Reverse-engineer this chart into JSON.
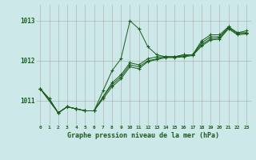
{
  "title": "Graphe pression niveau de la mer (hPa)",
  "background_color": "#cce8e8",
  "grid_color": "#aaaaaa",
  "line_color": "#1a5c1a",
  "xlim": [
    -0.5,
    23.5
  ],
  "ylim": [
    1010.4,
    1013.4
  ],
  "yticks": [
    1011,
    1012,
    1013
  ],
  "xticks": [
    0,
    1,
    2,
    3,
    4,
    5,
    6,
    7,
    8,
    9,
    10,
    11,
    12,
    13,
    14,
    15,
    16,
    17,
    18,
    19,
    20,
    21,
    22,
    23
  ],
  "series": [
    {
      "x": [
        0,
        1,
        2,
        3,
        4,
        5,
        6,
        7,
        8,
        9,
        10,
        11,
        12,
        13,
        14,
        15,
        16,
        17,
        18,
        19,
        20,
        21,
        22,
        23
      ],
      "y": [
        1011.3,
        1011.05,
        1010.7,
        1010.85,
        1010.8,
        1010.75,
        1010.75,
        1011.25,
        1011.75,
        1012.05,
        1013.0,
        1012.8,
        1012.35,
        1012.15,
        1012.1,
        1012.1,
        1012.15,
        1012.15,
        1012.5,
        1012.65,
        1012.65,
        1012.85,
        1012.7,
        1012.75
      ]
    },
    {
      "x": [
        0,
        1,
        2,
        3,
        4,
        5,
        6,
        7,
        8,
        9,
        10,
        11,
        12,
        13,
        14,
        15,
        16,
        17,
        18,
        19,
        20,
        21,
        22,
        23
      ],
      "y": [
        1011.3,
        1011.05,
        1010.7,
        1010.85,
        1010.8,
        1010.75,
        1010.75,
        1011.1,
        1011.45,
        1011.65,
        1011.95,
        1011.9,
        1012.05,
        1012.1,
        1012.1,
        1012.1,
        1012.15,
        1012.15,
        1012.45,
        1012.6,
        1012.6,
        1012.85,
        1012.7,
        1012.7
      ]
    },
    {
      "x": [
        0,
        2,
        3,
        4,
        5,
        6,
        7,
        8,
        9,
        10,
        11,
        12,
        13,
        14,
        15,
        16,
        17,
        18,
        19,
        20,
        21,
        22,
        23
      ],
      "y": [
        1011.3,
        1010.7,
        1010.85,
        1010.8,
        1010.75,
        1010.75,
        1011.1,
        1011.4,
        1011.6,
        1011.9,
        1011.85,
        1012.0,
        1012.05,
        1012.1,
        1012.1,
        1012.12,
        1012.15,
        1012.4,
        1012.55,
        1012.57,
        1012.82,
        1012.67,
        1012.7
      ]
    },
    {
      "x": [
        0,
        2,
        3,
        4,
        5,
        6,
        7,
        8,
        9,
        10,
        11,
        12,
        13,
        14,
        15,
        16,
        17,
        18,
        19,
        20,
        21,
        22,
        23
      ],
      "y": [
        1011.3,
        1010.7,
        1010.85,
        1010.8,
        1010.75,
        1010.75,
        1011.05,
        1011.35,
        1011.55,
        1011.85,
        1011.8,
        1011.98,
        1012.03,
        1012.08,
        1012.08,
        1012.1,
        1012.13,
        1012.37,
        1012.52,
        1012.54,
        1012.8,
        1012.65,
        1012.67
      ]
    }
  ]
}
